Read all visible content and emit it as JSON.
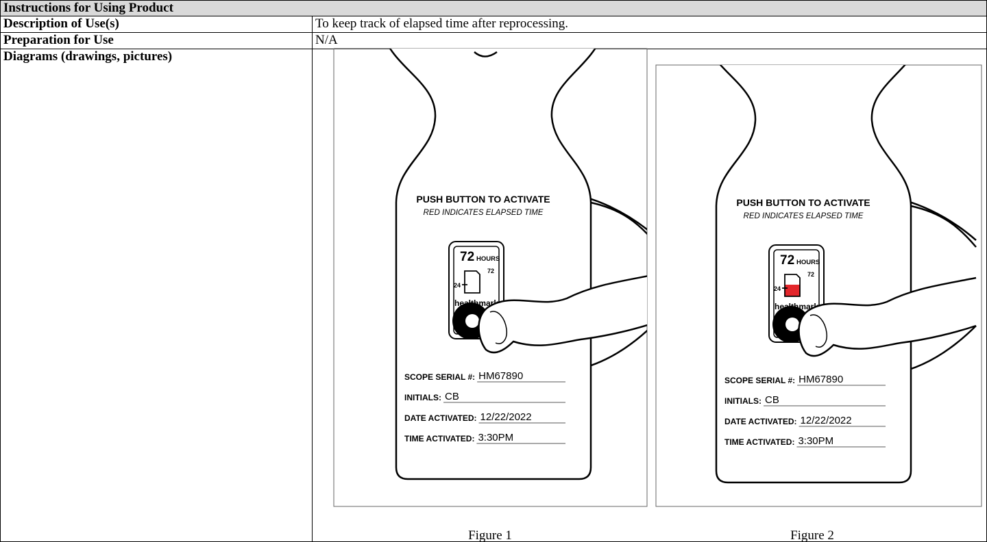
{
  "header": {
    "title": "Instructions for Using Product"
  },
  "table": {
    "rows": [
      [
        "Description of Use(s)",
        "To keep track of elapsed time after reprocessing."
      ],
      [
        "Preparation for Use",
        "N/A"
      ],
      [
        "Diagrams (drawings, pictures)"
      ]
    ]
  },
  "figures": [
    {
      "caption": "Figure 1",
      "title": "PUSH BUTTON TO ACTIVATE",
      "subtitle": "RED INDICATES ELAPSED TIME",
      "hours": "72",
      "hours_unit": "HOURS",
      "scale_start": "24",
      "scale_end": "72",
      "brand": "healthmark",
      "fields": [
        {
          "label": "SCOPE SERIAL #:",
          "value": "HM67890"
        },
        {
          "label": "INITIALS:",
          "value": "CB"
        },
        {
          "label": "DATE ACTIVATED:",
          "value": "12/22/2022"
        },
        {
          "label": "TIME ACTIVATED:",
          "value": "3:30PM"
        }
      ]
    },
    {
      "caption": "Figure 2",
      "title": "PUSH BUTTON TO ACTIVATE",
      "subtitle": "RED INDICATES ELAPSED TIME",
      "hours": "72",
      "hours_unit": "HOURS",
      "scale_start": "24",
      "scale_end": "72",
      "brand": "healthmark",
      "indicator_fill": "#e3262b",
      "fields": [
        {
          "label": "SCOPE SERIAL #:",
          "value": "HM67890"
        },
        {
          "label": "INITIALS:",
          "value": "CB"
        },
        {
          "label": "DATE ACTIVATED:",
          "value": "12/22/2022"
        },
        {
          "label": "TIME ACTIVATED:",
          "value": "3:30PM"
        }
      ]
    }
  ]
}
